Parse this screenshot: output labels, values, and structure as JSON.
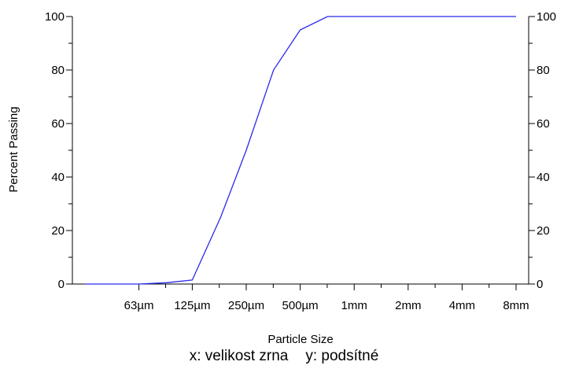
{
  "chart_data": {
    "type": "line",
    "title": "",
    "xlabel": "Particle Size",
    "ylabel": "Percent Passing",
    "x_scale": "log2",
    "x_tick_labels": [
      "63µm",
      "125µm",
      "250µm",
      "500µm",
      "1mm",
      "2mm",
      "4mm",
      "8mm"
    ],
    "x_tick_values_mm": [
      0.063,
      0.125,
      0.25,
      0.5,
      1,
      2,
      4,
      8
    ],
    "xlim_mm": [
      0.0315,
      8
    ],
    "ylim": [
      0,
      100
    ],
    "y_ticks": [
      0,
      20,
      40,
      60,
      80,
      100
    ],
    "grid": false,
    "legend": "none",
    "line_color": "#2a2aee",
    "series": [
      {
        "x_mm": [
          0.0315,
          0.045,
          0.063,
          0.09,
          0.125,
          0.18,
          0.25,
          0.355,
          0.5,
          0.71,
          1,
          2,
          4,
          8
        ],
        "values": [
          0,
          0,
          0,
          0.5,
          1.5,
          25,
          50,
          80,
          95,
          100,
          100,
          100,
          100,
          100
        ]
      }
    ]
  },
  "caption": {
    "x_label": "x: velikost zrna",
    "y_label": "y: podsítné"
  }
}
